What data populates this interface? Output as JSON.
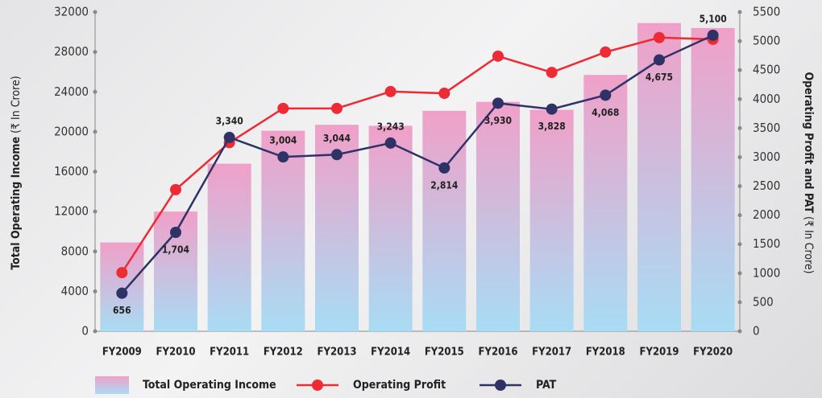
{
  "chart_data": {
    "type": "bar_line",
    "y_label": "Total Operating Income",
    "y_unit": "(₹ In Crore)",
    "y2_label": "Operating Profit and PAT",
    "y2_unit": "(₹ In Crore)",
    "categories": [
      "FY2009",
      "FY2010",
      "FY2011",
      "FY2012",
      "FY2013",
      "FY2014",
      "FY2015",
      "FY2016",
      "FY2017",
      "FY2018",
      "FY2019",
      "FY2020"
    ],
    "series": [
      {
        "name": "Total Operating Income",
        "type": "bar",
        "color": "#f0a0c8",
        "color2": "#a8dcf4",
        "values": [
          8900,
          12000,
          16800,
          20100,
          20700,
          20600,
          22100,
          23000,
          22200,
          25700,
          30900,
          30400
        ]
      },
      {
        "name": "Operating Profit",
        "type": "line",
        "axis": "y2",
        "color": "#ee2a34",
        "values": [
          1010,
          2440,
          3250,
          3840,
          3840,
          4130,
          4100,
          4740,
          4460,
          4810,
          5060,
          5030
        ]
      },
      {
        "name": "PAT",
        "type": "line",
        "axis": "y2",
        "color": "#2f3266",
        "values": [
          656,
          1704,
          3340,
          3004,
          3044,
          3243,
          2814,
          3930,
          3828,
          4068,
          4675,
          5100
        ],
        "value_labels": [
          "656",
          "1,704",
          "3,340",
          "3,004",
          "3,044",
          "3,243",
          "2,814",
          "3,930",
          "3,828",
          "4,068",
          "4,675",
          "5,100"
        ]
      }
    ],
    "ylim": [
      0,
      32000
    ],
    "yticks": [
      0,
      4000,
      8000,
      12000,
      16000,
      20000,
      24000,
      28000,
      32000
    ],
    "y2lim": [
      0,
      5500
    ],
    "y2ticks": [
      0,
      500,
      1000,
      1500,
      2000,
      2500,
      3000,
      3500,
      4000,
      4500,
      5000,
      5500
    ]
  }
}
